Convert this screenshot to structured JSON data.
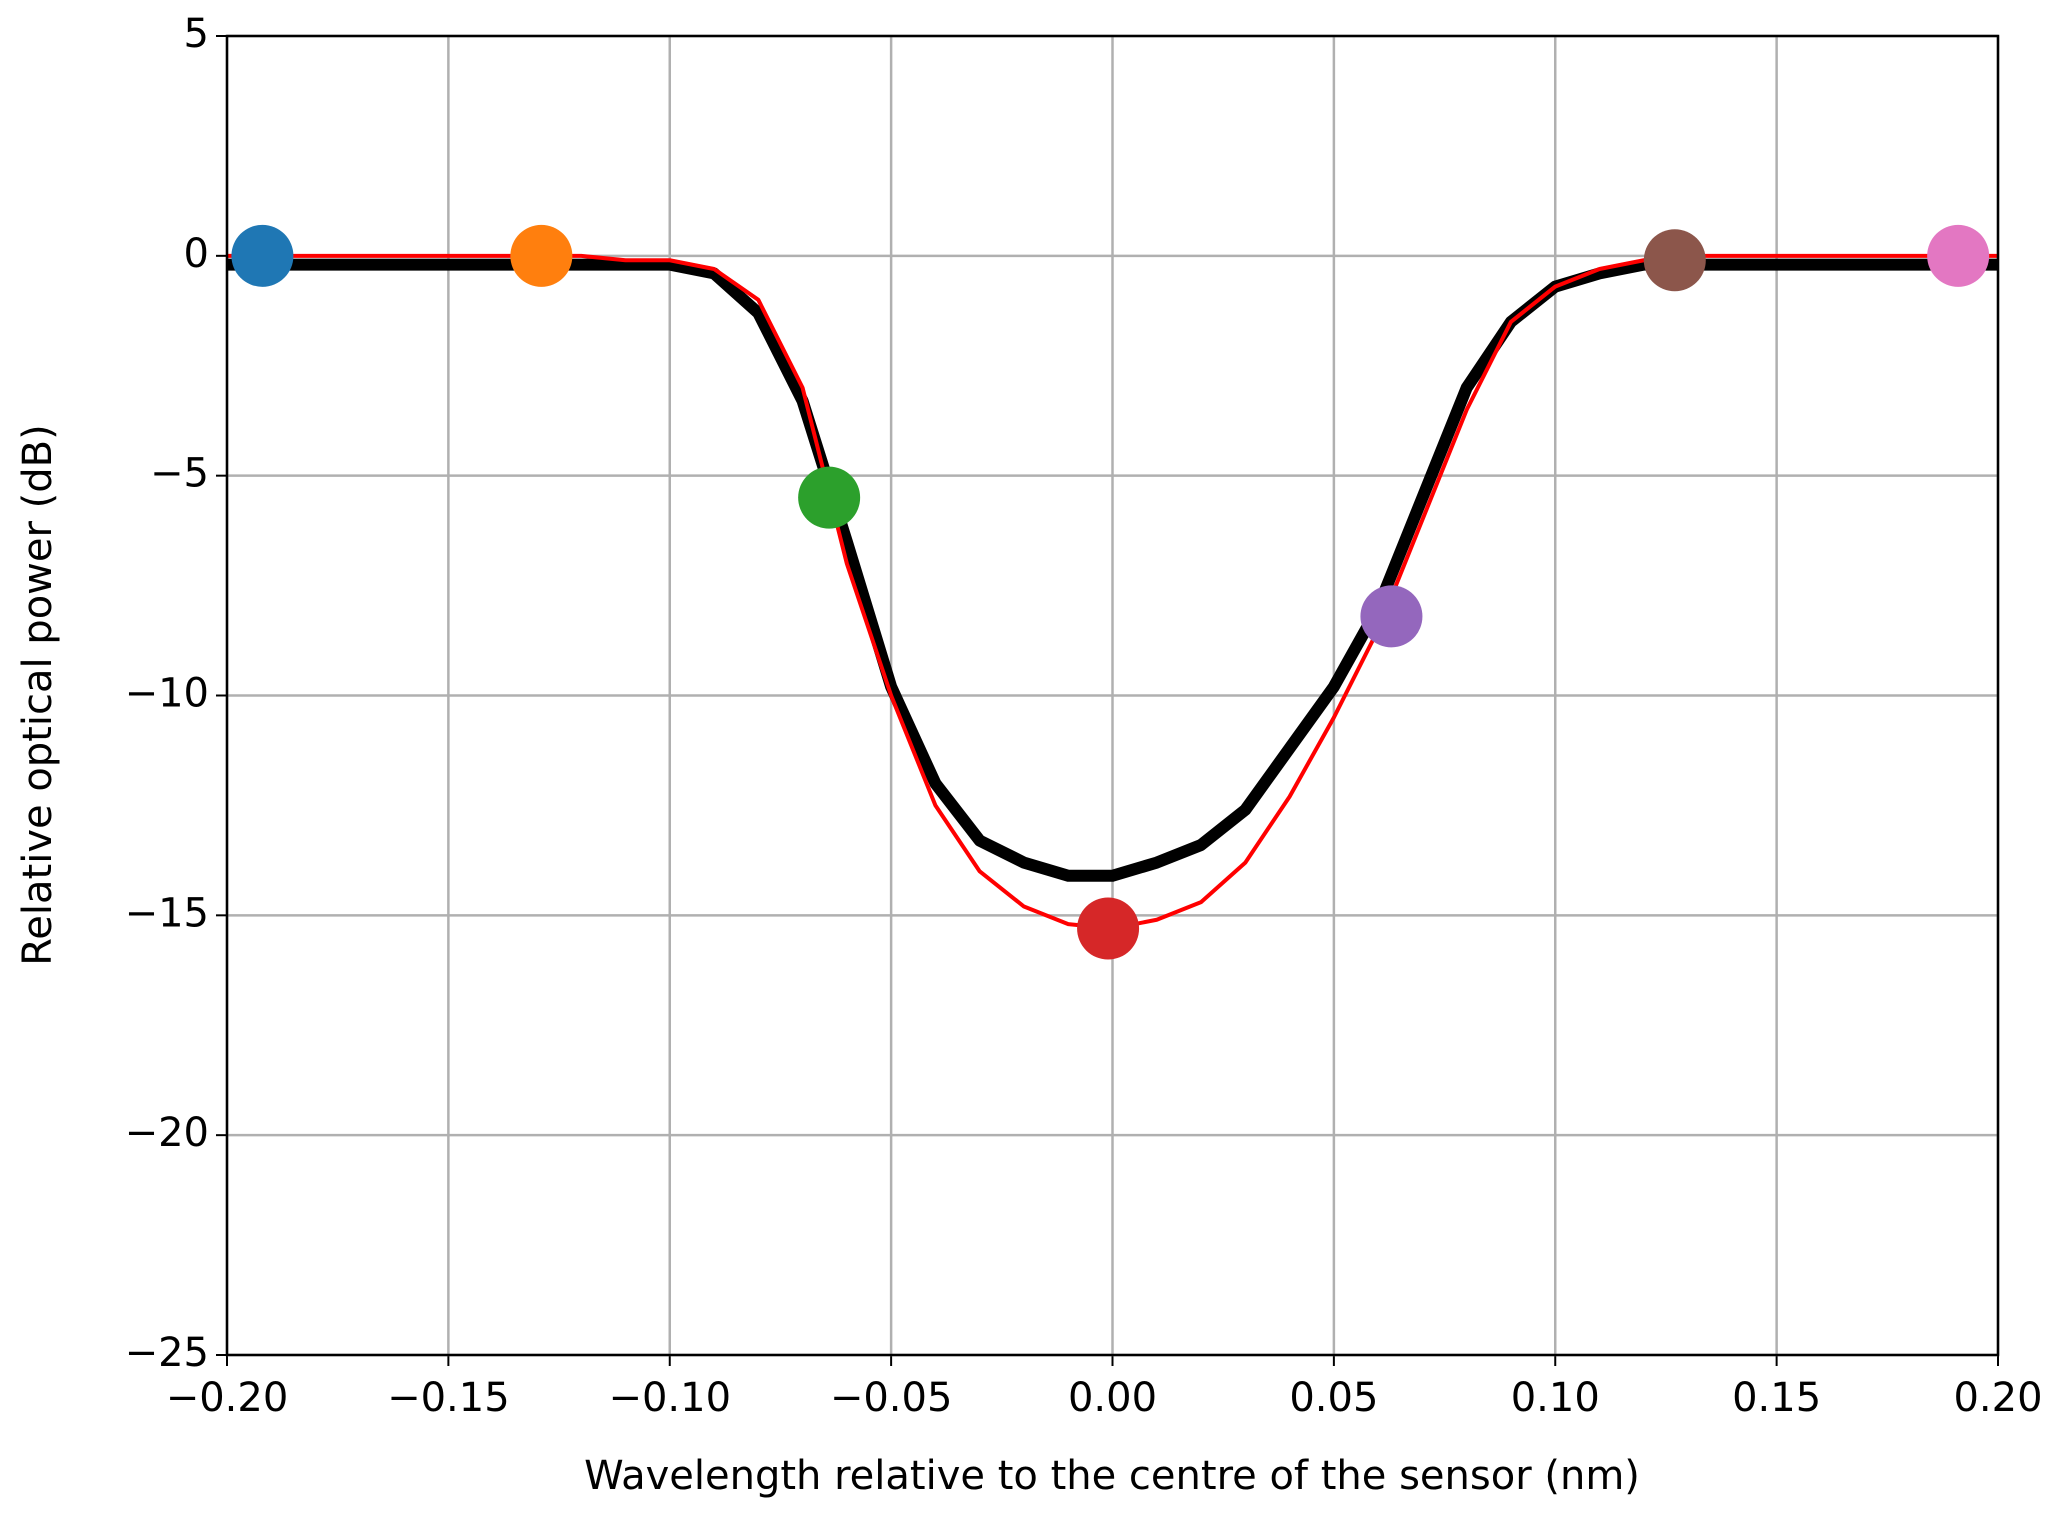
{
  "chart_data": {
    "type": "line",
    "xlabel": "Wavelength relative to the centre of the sensor (nm)",
    "ylabel": "Relative optical power (dB)",
    "xlim": [
      -0.2,
      0.2
    ],
    "ylim": [
      -25,
      5
    ],
    "xticks": [
      {
        "value": -0.2,
        "label": "−0.20"
      },
      {
        "value": -0.15,
        "label": "−0.15"
      },
      {
        "value": -0.1,
        "label": "−0.10"
      },
      {
        "value": -0.05,
        "label": "−0.05"
      },
      {
        "value": 0,
        "label": "0.00"
      },
      {
        "value": 0.05,
        "label": "0.05"
      },
      {
        "value": 0.1,
        "label": "0.10"
      },
      {
        "value": 0.15,
        "label": "0.15"
      },
      {
        "value": 0.2,
        "label": "0.20"
      }
    ],
    "yticks": [
      {
        "value": -25,
        "label": "−25"
      },
      {
        "value": -20,
        "label": "−20"
      },
      {
        "value": -15,
        "label": "−15"
      },
      {
        "value": -10,
        "label": "−10"
      },
      {
        "value": -5,
        "label": "−5"
      },
      0,
      5
    ],
    "grid": true,
    "x": [
      -0.2,
      -0.19,
      -0.18,
      -0.17,
      -0.16,
      -0.15,
      -0.14,
      -0.13,
      -0.12,
      -0.11,
      -0.1,
      -0.09,
      -0.08,
      -0.07,
      -0.06,
      -0.05,
      -0.04,
      -0.03,
      -0.02,
      -0.01,
      0,
      0.01,
      0.02,
      0.03,
      0.04,
      0.05,
      0.06,
      0.07,
      0.08,
      0.09,
      0.1,
      0.11,
      0.12,
      0.13,
      0.14,
      0.15,
      0.16,
      0.17,
      0.18,
      0.19,
      0.2
    ],
    "series": [
      {
        "color": "#000000",
        "values": [
          -0.2,
          -0.2,
          -0.2,
          -0.2,
          -0.2,
          -0.2,
          -0.2,
          -0.2,
          -0.2,
          -0.2,
          -0.2,
          -0.4,
          -1.3,
          -3.3,
          -6.5,
          -9.8,
          -12,
          -13.3,
          -13.8,
          -14.1,
          -14.1,
          -13.8,
          -13.4,
          -12.6,
          -11.2,
          -9.8,
          -8,
          -5.5,
          -3,
          -1.5,
          -0.7,
          -0.4,
          -0.2,
          -0.2,
          -0.2,
          -0.2,
          -0.2,
          -0.2,
          -0.2,
          -0.2,
          -0.2
        ]
      },
      {
        "color": "#ff0000",
        "values": [
          0,
          0,
          0,
          0,
          0,
          0,
          0,
          0,
          0,
          -0.1,
          -0.1,
          -0.3,
          -1.0,
          -3.0,
          -7.0,
          -10.0,
          -12.5,
          -14.0,
          -14.8,
          -15.2,
          -15.3,
          -15.1,
          -14.7,
          -13.8,
          -12.3,
          -10.5,
          -8.5,
          -6.0,
          -3.5,
          -1.5,
          -0.7,
          -0.3,
          -0.1,
          0,
          0,
          0,
          0,
          0,
          0,
          0,
          0
        ]
      }
    ],
    "points": {
      "x": [
        -0.192,
        -0.129,
        -0.064,
        -0.001,
        0.063,
        0.127,
        0.191
      ],
      "y": [
        0,
        0,
        -5.5,
        -15.3,
        -8.2,
        -0.1,
        0
      ],
      "colors": [
        "#1f77b4",
        "#ff7f0e",
        "#2ca02c",
        "#d62728",
        "#9467bd",
        "#8c564b",
        "#e377c2"
      ]
    }
  }
}
